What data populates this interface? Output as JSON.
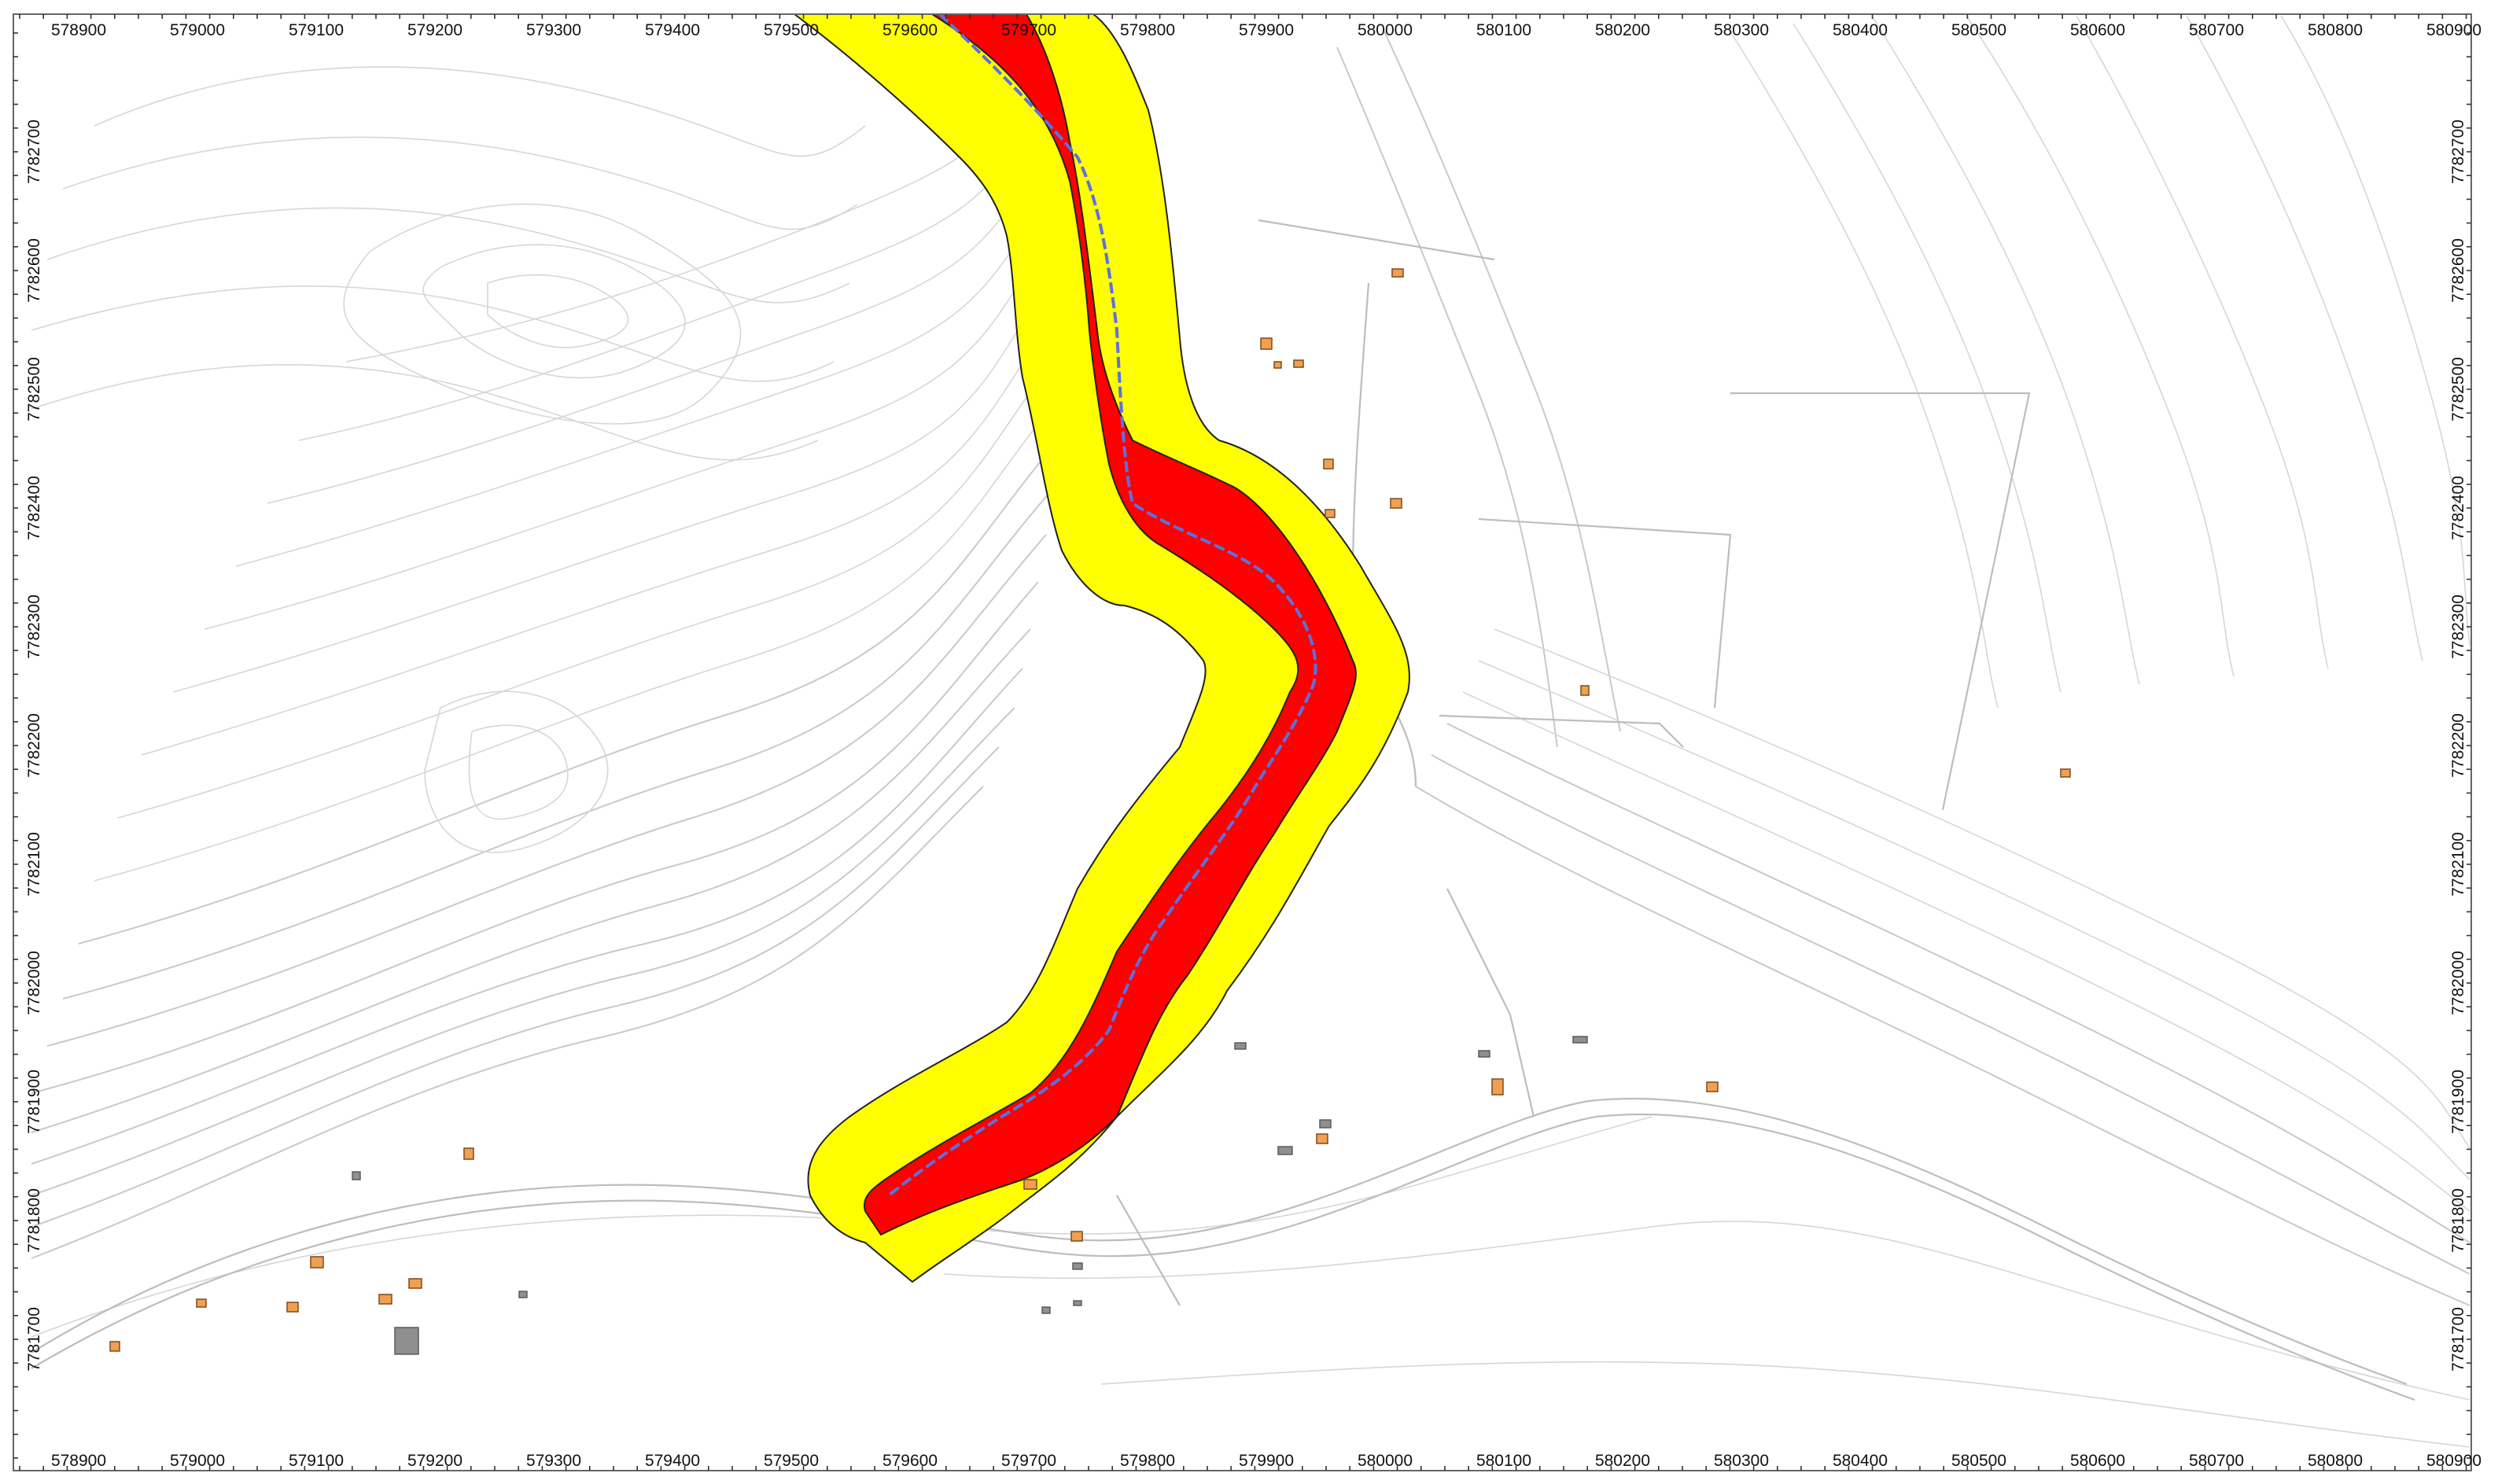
{
  "map": {
    "x_axis_labels": [
      "578900",
      "579000",
      "579100",
      "579200",
      "579300",
      "579400",
      "579500",
      "579600",
      "579700",
      "579800",
      "579900",
      "580000",
      "580100",
      "580200",
      "580300",
      "580400",
      "580500",
      "580600",
      "580700",
      "580800",
      "580900"
    ],
    "y_axis_labels": [
      "7782700",
      "7782600",
      "7782500",
      "7782400",
      "7782300",
      "7782200",
      "7782100",
      "7782000",
      "7781900",
      "7781800",
      "7781700"
    ],
    "colors": {
      "outer_zone": "#ffff00",
      "inner_zone": "#ff0000",
      "river": "#5c70e0",
      "contour": "#c9c9c9",
      "building": "#f0a050"
    },
    "layers": [
      "contour-lines",
      "roads",
      "hazard-zone-yellow",
      "hazard-zone-red",
      "river-centerline",
      "buildings"
    ]
  }
}
